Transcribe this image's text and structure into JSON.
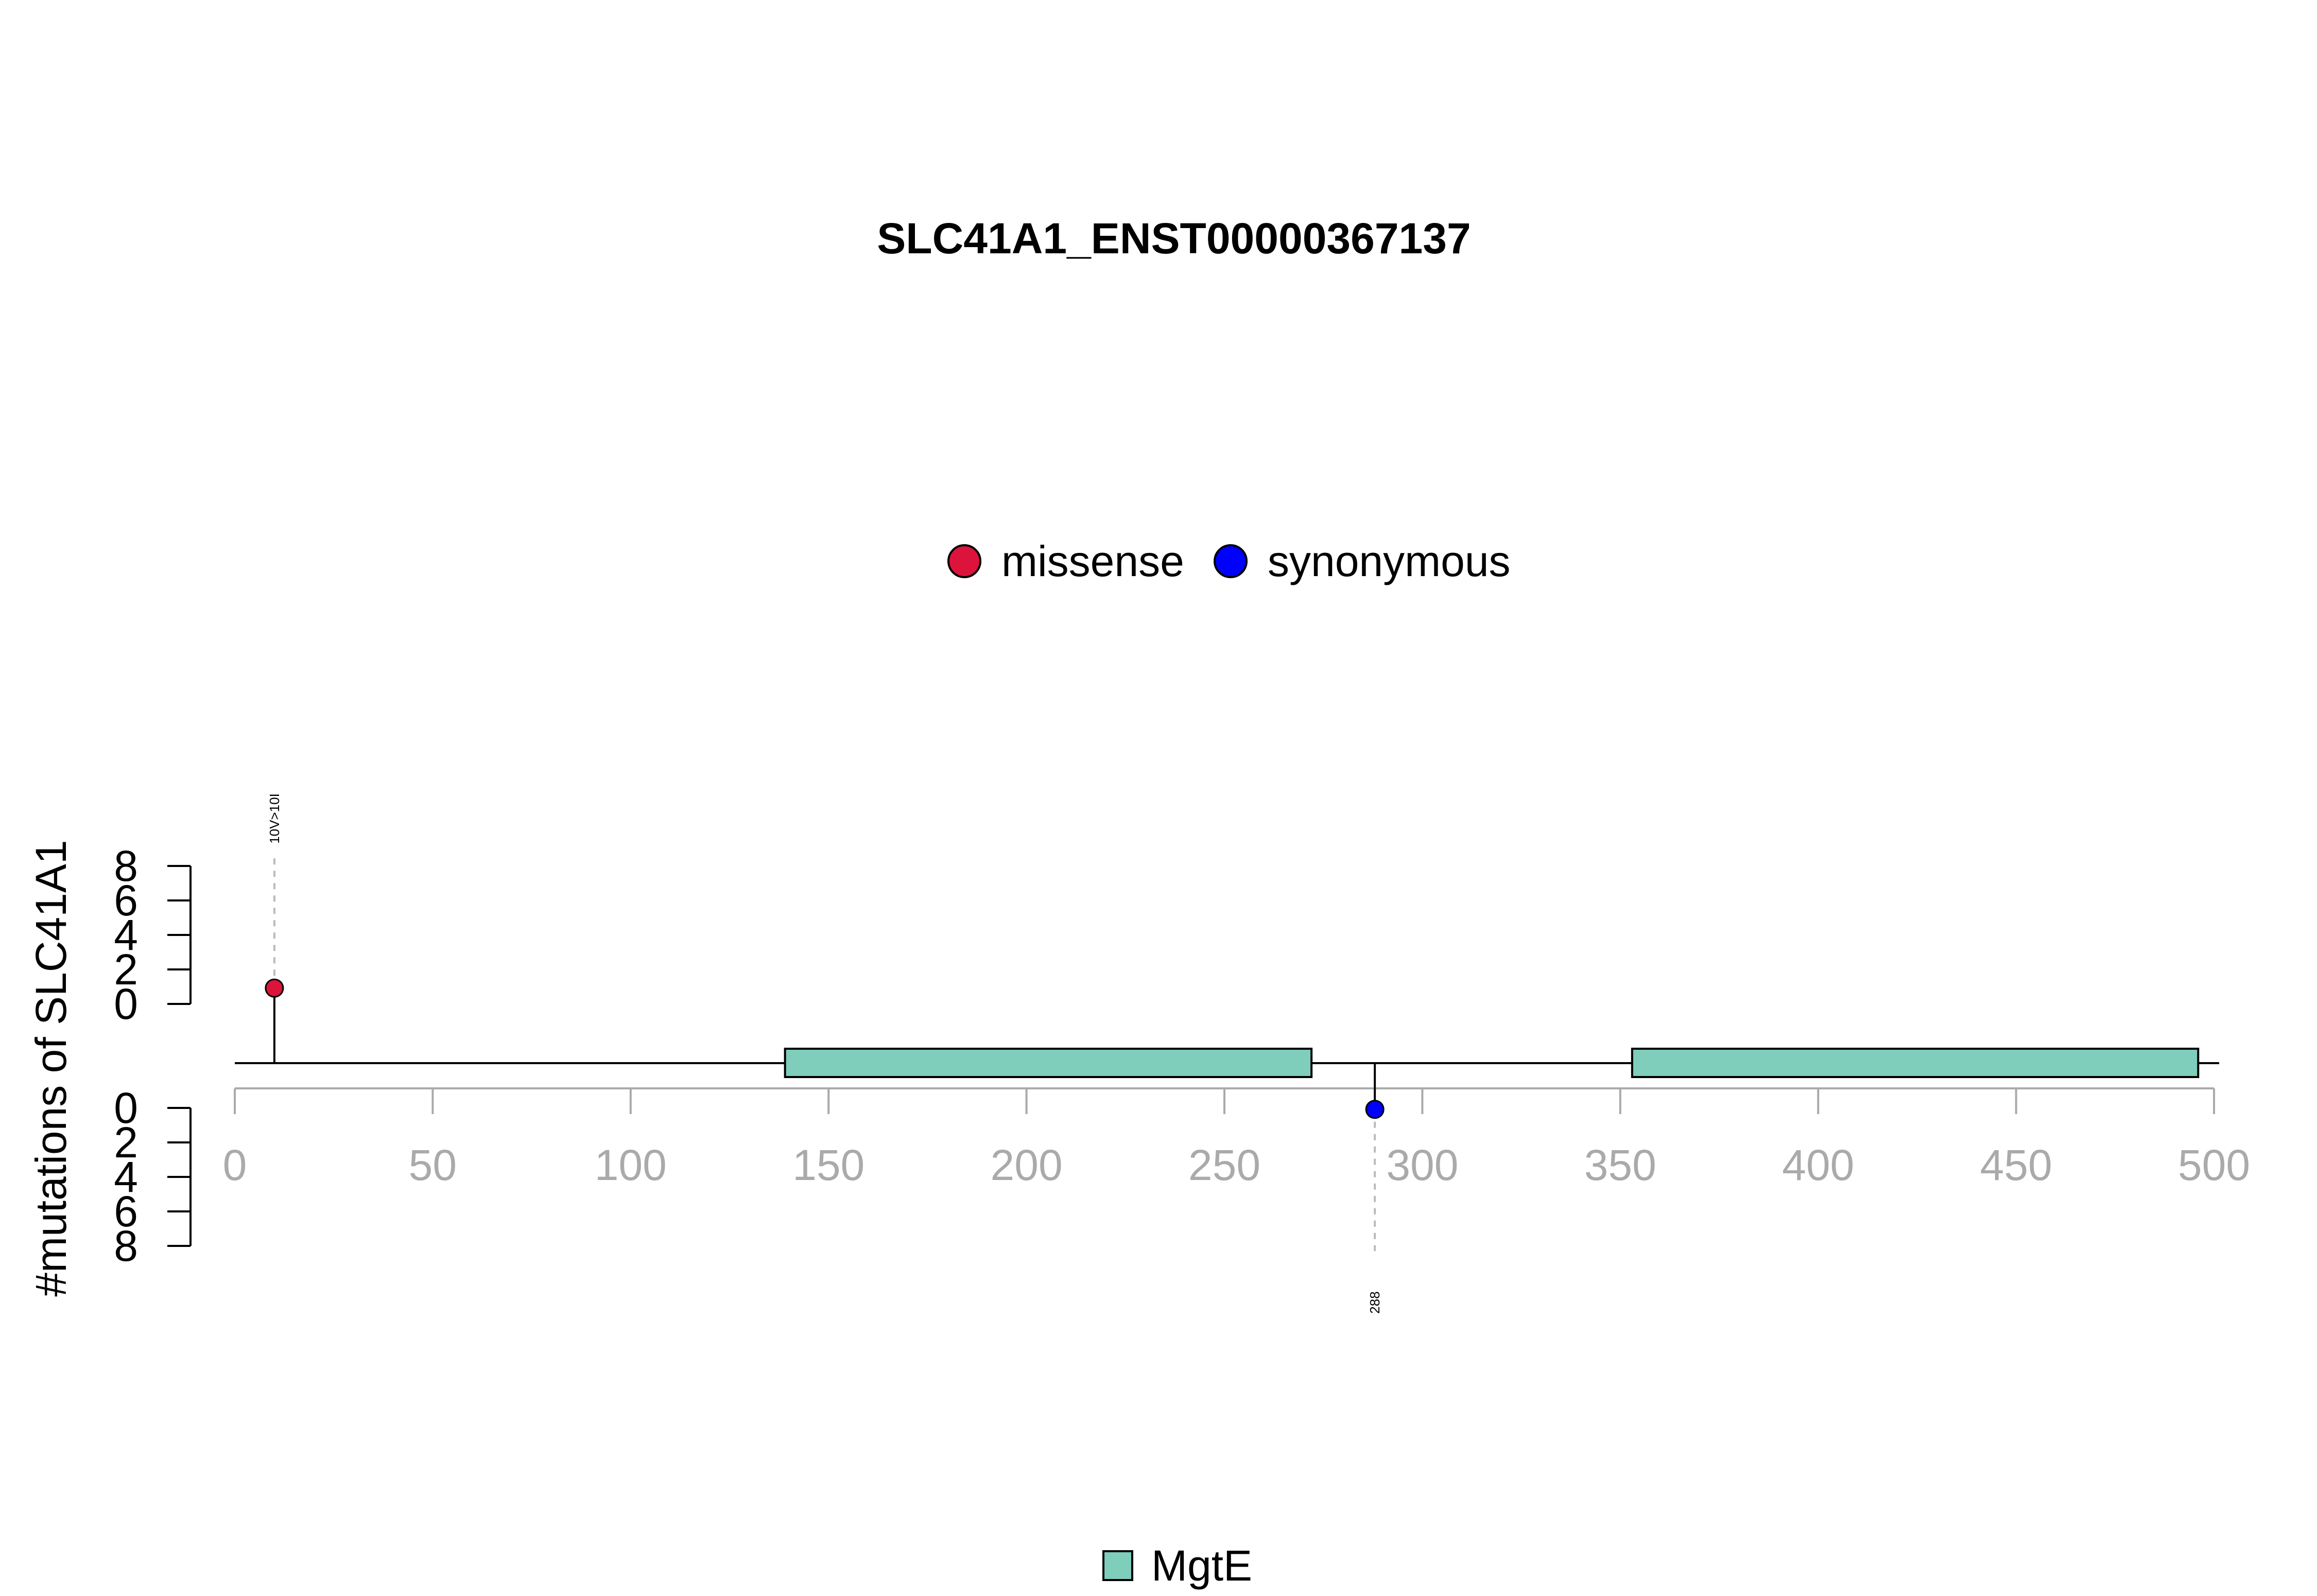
{
  "chart_data": {
    "type": "lollipop",
    "title": "SLC41A1_ENST00000367137",
    "ylabel": "#mutations of SLC41A1",
    "xlim": [
      0,
      500
    ],
    "x_ticks": [
      0,
      50,
      100,
      150,
      200,
      250,
      300,
      350,
      400,
      450,
      500
    ],
    "y_ticks_top": [
      0,
      2,
      4,
      6,
      8
    ],
    "y_ticks_bottom": [
      0,
      2,
      4,
      6,
      8
    ],
    "protein_length": 513,
    "mutation_legend": [
      {
        "name": "missense",
        "color": "#DC143C"
      },
      {
        "name": "synonymous",
        "color": "#0000FF"
      }
    ],
    "mutations": [
      {
        "position": 10,
        "count": 1,
        "type": "missense",
        "label": "10V>10I",
        "side": "top",
        "color": "#DC143C"
      },
      {
        "position": 288,
        "count": 1,
        "type": "synonymous",
        "label": "288",
        "side": "bottom",
        "color": "#0000FF"
      }
    ],
    "domains": [
      {
        "name": "MgtE",
        "start": 139,
        "end": 272,
        "color": "#7FCDBB"
      },
      {
        "name": "MgtE",
        "start": 353,
        "end": 496,
        "color": "#7FCDBB"
      }
    ],
    "domain_legend": [
      {
        "name": "MgtE",
        "color": "#7FCDBB"
      }
    ]
  }
}
